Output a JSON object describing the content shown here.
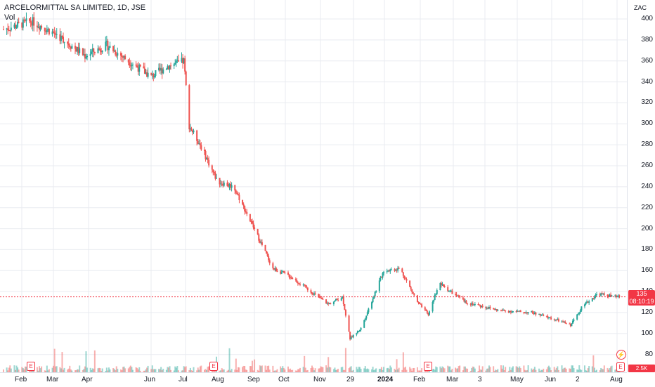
{
  "legend": {
    "symbol": "ARCELORMITTAL SA LIMITED, 1D, JSE",
    "volume_label": "Vol"
  },
  "price_axis": {
    "currency": "ZAC",
    "ticks": [
      "400",
      "380",
      "360",
      "340",
      "320",
      "300",
      "280",
      "260",
      "240",
      "220",
      "200",
      "180",
      "160",
      "140",
      "120",
      "100",
      "80"
    ],
    "last_price": "135",
    "countdown": "08:10:19",
    "volume_value": "2.5K"
  },
  "time_axis": {
    "labels": [
      "Feb",
      "Mar",
      "Apr",
      "Jun",
      "Jul",
      "Aug",
      "Sep",
      "Oct",
      "Nov",
      "29",
      "2024",
      "Feb",
      "Mar",
      "3",
      "May",
      "Jun",
      "2",
      "Aug"
    ]
  },
  "events": {
    "earnings_label": "E",
    "dividend_icon": "flash-icon"
  },
  "colors": {
    "up": "#26a69a",
    "down": "#ef5350",
    "grid": "#e9ebf0",
    "last_line": "#f23645"
  },
  "chart_data": {
    "type": "line",
    "title": "ARCELORMITTAL SA LIMITED, 1D, JSE",
    "ylim": [
      72,
      420
    ],
    "currency": "ZAC",
    "x_ticks": [
      "Feb",
      "Mar",
      "Apr",
      "Jun",
      "Jul",
      "Aug",
      "Sep",
      "Oct",
      "Nov",
      "29",
      "2024",
      "Feb",
      "Mar",
      "3",
      "May",
      "Jun",
      "2",
      "Aug"
    ],
    "series": [
      {
        "x": [
          "2023-01-20",
          "2023-02-15",
          "2023-03-10",
          "2023-04-05",
          "2023-04-25",
          "2023-05-15",
          "2023-06-05",
          "2023-06-20",
          "2023-07-01",
          "2023-07-05",
          "2023-07-10",
          "2023-07-20",
          "2023-08-05",
          "2023-08-20",
          "2023-09-10",
          "2023-09-25",
          "2023-10-10",
          "2023-10-30",
          "2023-11-15",
          "2023-11-28",
          "2023-12-05",
          "2023-12-15",
          "2024-01-05",
          "2024-01-20",
          "2024-02-05",
          "2024-02-15",
          "2024-02-25",
          "2024-03-20",
          "2024-04-20",
          "2024-05-20",
          "2024-06-15",
          "2024-06-25",
          "2024-07-05",
          "2024-07-20",
          "2024-08-05"
        ],
        "values": [
          390,
          398,
          385,
          365,
          375,
          360,
          345,
          355,
          358,
          360,
          298,
          280,
          245,
          240,
          195,
          162,
          155,
          140,
          128,
          135,
          95,
          105,
          160,
          162,
          130,
          118,
          148,
          130,
          122,
          120,
          112,
          108,
          125,
          138,
          135
        ]
      }
    ],
    "volume_last": "2.5K"
  }
}
